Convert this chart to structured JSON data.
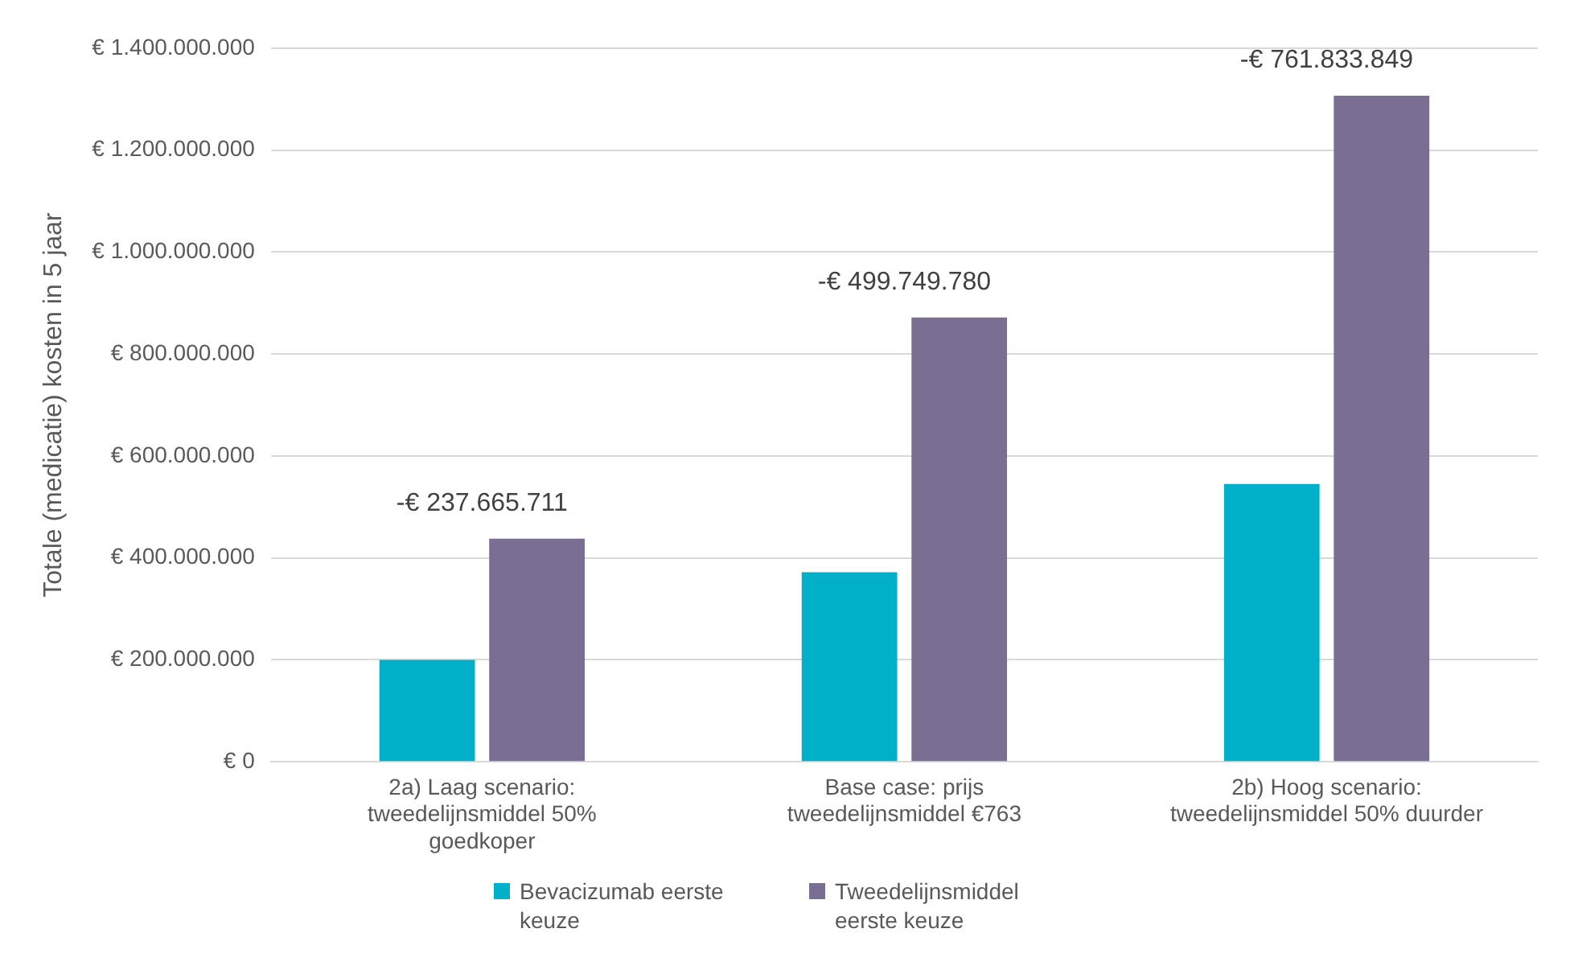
{
  "chart_data": {
    "type": "bar",
    "ylabel": "Totale (medicatie) kosten in 5 jaar",
    "categories": [
      "2a) Laag scenario: tweedelijnsmiddel 50% goedkoper",
      "Base case: prijs tweedelijnsmiddel €763",
      "2b) Hoog scenario: tweedelijnsmiddel 50% duurder"
    ],
    "series": [
      {
        "name": "Bevacizumab eerste keuze",
        "color": "#00b0c8",
        "values": [
          200000000,
          372000000,
          545000000
        ]
      },
      {
        "name": "Tweedelijnsmiddel eerste keuze",
        "color": "#7a6e93",
        "values": [
          437700000,
          871700000,
          1307000000
        ]
      }
    ],
    "ylim": [
      0,
      1400000000
    ],
    "yticks": [
      {
        "value": 0,
        "label": "€ 0"
      },
      {
        "value": 200000000,
        "label": "€ 200.000.000"
      },
      {
        "value": 400000000,
        "label": "€ 400.000.000"
      },
      {
        "value": 600000000,
        "label": "€ 600.000.000"
      },
      {
        "value": 800000000,
        "label": "€ 800.000.000"
      },
      {
        "value": 1000000000,
        "label": "€ 1.000.000.000"
      },
      {
        "value": 1200000000,
        "label": "€ 1.200.000.000"
      },
      {
        "value": 1400000000,
        "label": "€ 1.400.000.000"
      }
    ],
    "annotations": [
      {
        "text": "-€ 237.665.711",
        "x": "2a) Laag scenario: tweedelijnsmiddel 50% goedkoper",
        "y": 437700000
      },
      {
        "text": "-€ 499.749.780",
        "x": "Base case: prijs tweedelijnsmiddel €763",
        "y": 871700000
      },
      {
        "text": "-€ 761.833.849",
        "x": "2b) Hoog scenario: tweedelijnsmiddel 50% duurder",
        "y": 1307000000
      }
    ],
    "grid": "y",
    "legend": "bottom"
  }
}
